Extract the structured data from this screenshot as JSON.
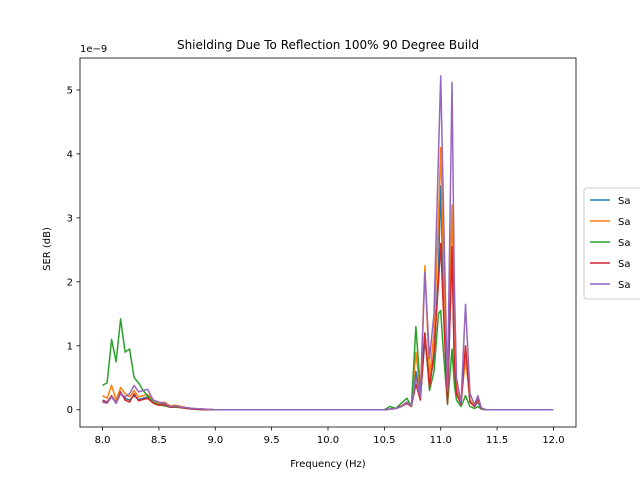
{
  "chart_data": {
    "type": "line",
    "title": "Shielding Due To Reflection 100% 90 Degree Build",
    "xlabel": "Frequency (Hz)",
    "ylabel": "SER (dB)",
    "offset_text": "1e−9",
    "xlim": [
      7.8,
      12.2
    ],
    "ylim": [
      -0.27,
      5.5
    ],
    "y_scale_factor": 1e-09,
    "x_ticks": [
      "8.0",
      "8.5",
      "9.0",
      "9.5",
      "10.0",
      "10.5",
      "11.0",
      "11.5",
      "12.0"
    ],
    "y_ticks": [
      "0",
      "1",
      "2",
      "3",
      "4",
      "5"
    ],
    "grid": false,
    "legend_position": "right, clipped",
    "x": [
      8.0,
      8.04,
      8.08,
      8.12,
      8.16,
      8.2,
      8.24,
      8.28,
      8.32,
      8.36,
      8.4,
      8.45,
      8.5,
      8.55,
      8.6,
      8.65,
      8.7,
      8.75,
      8.8,
      8.9,
      9.0,
      9.25,
      9.5,
      9.75,
      10.0,
      10.25,
      10.5,
      10.55,
      10.6,
      10.65,
      10.7,
      10.74,
      10.78,
      10.82,
      10.86,
      10.9,
      10.94,
      10.98,
      11.0,
      11.02,
      11.06,
      11.1,
      11.12,
      11.14,
      11.18,
      11.22,
      11.26,
      11.3,
      11.33,
      11.36,
      11.4,
      11.5,
      11.75,
      12.0
    ],
    "series": [
      {
        "name": "Sa",
        "color": "#1f77b4",
        "values": [
          0.15,
          0.12,
          0.2,
          0.12,
          0.25,
          0.18,
          0.15,
          0.22,
          0.16,
          0.18,
          0.2,
          0.12,
          0.08,
          0.1,
          0.05,
          0.06,
          0.04,
          0.03,
          0.02,
          0.01,
          0.0,
          0.0,
          0.0,
          0.0,
          0.0,
          0.0,
          0.0,
          0.01,
          0.02,
          0.05,
          0.1,
          0.05,
          0.6,
          0.2,
          1.1,
          0.4,
          0.8,
          2.2,
          3.5,
          2.0,
          0.1,
          2.5,
          0.8,
          0.3,
          0.1,
          0.9,
          0.12,
          0.05,
          0.12,
          0.02,
          0.0,
          0.0,
          0.0,
          0.0
        ]
      },
      {
        "name": "Sa",
        "color": "#ff7f0e",
        "values": [
          0.22,
          0.18,
          0.38,
          0.15,
          0.35,
          0.25,
          0.2,
          0.3,
          0.2,
          0.22,
          0.24,
          0.15,
          0.1,
          0.12,
          0.06,
          0.07,
          0.05,
          0.03,
          0.02,
          0.01,
          0.0,
          0.0,
          0.0,
          0.0,
          0.0,
          0.0,
          0.0,
          0.01,
          0.02,
          0.06,
          0.12,
          0.06,
          0.9,
          0.25,
          2.25,
          0.5,
          1.2,
          3.0,
          4.1,
          2.6,
          0.15,
          3.2,
          1.0,
          0.35,
          0.12,
          0.8,
          0.15,
          0.06,
          0.15,
          0.03,
          0.0,
          0.0,
          0.0,
          0.0
        ]
      },
      {
        "name": "Sa",
        "color": "#2ca02c",
        "values": [
          0.38,
          0.42,
          1.1,
          0.75,
          1.42,
          0.9,
          0.95,
          0.5,
          0.42,
          0.3,
          0.22,
          0.12,
          0.08,
          0.06,
          0.04,
          0.04,
          0.03,
          0.02,
          0.01,
          0.0,
          0.0,
          0.0,
          0.0,
          0.0,
          0.0,
          0.0,
          0.0,
          0.05,
          0.02,
          0.1,
          0.18,
          0.05,
          1.3,
          0.3,
          1.2,
          0.3,
          0.6,
          1.5,
          1.55,
          1.0,
          0.08,
          0.95,
          0.4,
          0.15,
          0.05,
          0.22,
          0.05,
          0.02,
          0.05,
          0.01,
          0.0,
          0.0,
          0.0,
          0.0
        ]
      },
      {
        "name": "Sa",
        "color": "#d62728",
        "values": [
          0.14,
          0.12,
          0.22,
          0.1,
          0.28,
          0.15,
          0.12,
          0.25,
          0.14,
          0.16,
          0.18,
          0.1,
          0.07,
          0.08,
          0.04,
          0.05,
          0.03,
          0.02,
          0.01,
          0.0,
          0.0,
          0.0,
          0.0,
          0.0,
          0.0,
          0.0,
          0.0,
          0.01,
          0.02,
          0.05,
          0.1,
          0.05,
          0.4,
          0.15,
          1.2,
          0.35,
          0.9,
          2.0,
          2.6,
          1.7,
          0.1,
          2.55,
          0.7,
          0.25,
          0.08,
          1.0,
          0.12,
          0.05,
          0.18,
          0.02,
          0.0,
          0.0,
          0.0,
          0.0
        ]
      },
      {
        "name": "Sa",
        "color": "#9467bd",
        "values": [
          0.12,
          0.1,
          0.2,
          0.1,
          0.25,
          0.2,
          0.25,
          0.38,
          0.28,
          0.3,
          0.32,
          0.15,
          0.12,
          0.1,
          0.05,
          0.06,
          0.04,
          0.03,
          0.02,
          0.01,
          0.0,
          0.0,
          0.0,
          0.0,
          0.0,
          0.0,
          0.0,
          0.01,
          0.02,
          0.05,
          0.12,
          0.06,
          0.5,
          0.2,
          2.15,
          0.8,
          1.5,
          4.0,
          5.22,
          3.5,
          0.3,
          5.12,
          2.0,
          0.5,
          0.1,
          1.65,
          0.25,
          0.08,
          0.22,
          0.03,
          0.0,
          0.0,
          0.0,
          0.0
        ]
      }
    ]
  }
}
